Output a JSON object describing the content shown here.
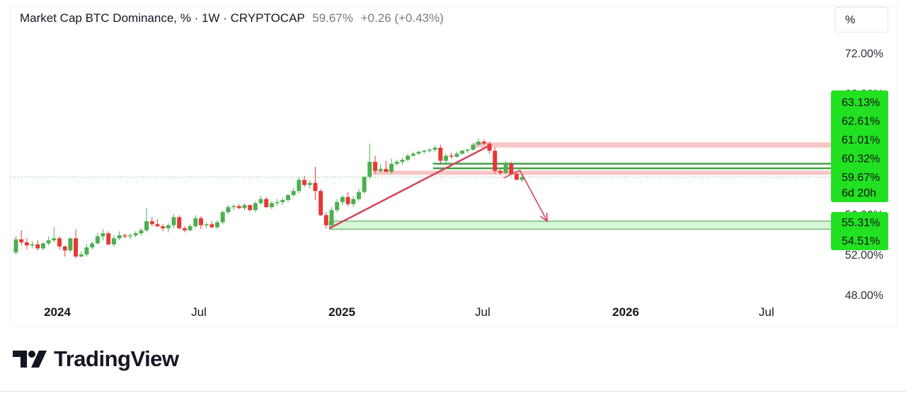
{
  "header": {
    "symbol_title": "Market Cap BTC Dominance, % · 1W · CRYPTOCAP",
    "last_value": "59.67%",
    "change": "+0.26 (+0.43%)"
  },
  "scale_unit": "%",
  "branding": {
    "wordmark": "TradingView",
    "logo_icon": "tradingview-logo-icon"
  },
  "colors": {
    "up": "#4caf50",
    "down": "#e53935",
    "label_bg": "#22e022",
    "zone_red": "#f6b3b3",
    "zone_green": "#c8f3c8",
    "trendline": "#d3455b",
    "hline_green": "#43a047"
  },
  "chart_data": {
    "type": "candlestick",
    "title": "Market Cap BTC Dominance, % · 1W · CRYPTOCAP",
    "interval": "1W",
    "y_unit": "%",
    "ylim": [
      48,
      72
    ],
    "y_ticks": [
      "72.00%",
      "68.00%",
      "56.00%",
      "52.00%",
      "48.00%"
    ],
    "x_ticks": [
      {
        "date": "2024-01-01",
        "label": "2024",
        "bold": true
      },
      {
        "date": "2024-07-01",
        "label": "Jul",
        "bold": false
      },
      {
        "date": "2025-01-01",
        "label": "2025",
        "bold": true
      },
      {
        "date": "2025-07-01",
        "label": "Jul",
        "bold": false
      },
      {
        "date": "2026-01-01",
        "label": "2026",
        "bold": true
      },
      {
        "date": "2026-07-01",
        "label": "Jul",
        "bold": false
      }
    ],
    "x_range": [
      "2023-11-01",
      "2027-01-01"
    ],
    "level_labels": [
      {
        "value": 63.13,
        "text": "63.13%"
      },
      {
        "value": 62.61,
        "text": "62.61%"
      },
      {
        "value": 61.01,
        "text": "61.01%"
      },
      {
        "value": 60.32,
        "text": "60.32%"
      },
      {
        "value": 59.67,
        "text": "59.67%",
        "subtext": "6d 20h"
      },
      {
        "value": 55.31,
        "text": "55.31%"
      },
      {
        "value": 54.51,
        "text": "54.51%"
      }
    ],
    "current_price": 59.67,
    "countdown": "6d 20h",
    "zones": [
      {
        "from": 62.61,
        "to": 63.13,
        "color": "red",
        "start": "2025-06-20"
      },
      {
        "from": 60.32,
        "to": 59.9,
        "color": "red",
        "start": "2025-02-10"
      },
      {
        "from": 54.51,
        "to": 55.31,
        "color": "green",
        "start": "2024-12-16"
      }
    ],
    "hlines": [
      {
        "value": 61.01,
        "start": "2025-04-28"
      },
      {
        "value": 60.55,
        "start": "2025-04-28"
      }
    ],
    "drawings": [
      {
        "kind": "trendline",
        "from": [
          "2024-12-16",
          54.6
        ],
        "to": [
          "2025-07-07",
          62.7
        ]
      },
      {
        "kind": "arrow",
        "points": [
          [
            "2025-07-28",
            59.6
          ],
          [
            "2025-08-18",
            60.35
          ],
          [
            "2025-09-22",
            55.3
          ]
        ]
      }
    ],
    "candles": [
      [
        "2023-11-06",
        52.2,
        53.8,
        52.0,
        53.5
      ],
      [
        "2023-11-13",
        53.5,
        54.4,
        52.9,
        53.2
      ],
      [
        "2023-11-20",
        53.2,
        53.6,
        52.5,
        52.9
      ],
      [
        "2023-11-27",
        52.9,
        53.3,
        52.6,
        53.0
      ],
      [
        "2023-12-04",
        53.0,
        53.4,
        52.4,
        52.6
      ],
      [
        "2023-12-11",
        52.6,
        53.2,
        52.4,
        53.1
      ],
      [
        "2023-12-18",
        53.1,
        53.8,
        52.9,
        53.4
      ],
      [
        "2023-12-25",
        53.4,
        54.7,
        53.2,
        53.6
      ],
      [
        "2024-01-01",
        53.6,
        53.8,
        52.5,
        52.8
      ],
      [
        "2024-01-08",
        52.8,
        52.9,
        51.8,
        52.4
      ],
      [
        "2024-01-15",
        52.4,
        53.7,
        52.2,
        53.6
      ],
      [
        "2024-01-22",
        53.6,
        54.5,
        51.6,
        51.8
      ],
      [
        "2024-01-29",
        51.8,
        52.3,
        51.7,
        52.0
      ],
      [
        "2024-02-05",
        52.0,
        53.0,
        51.8,
        52.7
      ],
      [
        "2024-02-12",
        52.7,
        53.3,
        52.5,
        53.1
      ],
      [
        "2024-02-19",
        53.1,
        54.1,
        53.0,
        53.8
      ],
      [
        "2024-02-26",
        53.8,
        54.5,
        53.4,
        54.1
      ],
      [
        "2024-03-04",
        54.1,
        54.3,
        52.9,
        53.0
      ],
      [
        "2024-03-11",
        53.0,
        53.9,
        52.8,
        53.6
      ],
      [
        "2024-03-18",
        53.6,
        54.3,
        53.4,
        53.9
      ],
      [
        "2024-03-25",
        53.9,
        54.1,
        53.6,
        53.8
      ],
      [
        "2024-04-01",
        53.8,
        54.1,
        53.5,
        53.9
      ],
      [
        "2024-04-08",
        53.9,
        54.3,
        53.7,
        54.1
      ],
      [
        "2024-04-15",
        54.1,
        54.6,
        53.9,
        54.4
      ],
      [
        "2024-04-22",
        54.4,
        56.6,
        54.2,
        55.3
      ],
      [
        "2024-04-29",
        55.3,
        55.7,
        54.8,
        55.0
      ],
      [
        "2024-05-06",
        55.0,
        55.5,
        54.7,
        54.8
      ],
      [
        "2024-05-13",
        54.8,
        55.0,
        54.3,
        54.6
      ],
      [
        "2024-05-20",
        54.6,
        55.1,
        54.2,
        54.9
      ],
      [
        "2024-05-27",
        54.9,
        56.0,
        54.6,
        55.7
      ],
      [
        "2024-06-03",
        55.7,
        55.9,
        54.5,
        54.6
      ],
      [
        "2024-06-10",
        54.6,
        54.8,
        54.2,
        54.4
      ],
      [
        "2024-06-17",
        54.4,
        55.0,
        54.3,
        54.8
      ],
      [
        "2024-06-24",
        54.8,
        55.9,
        54.6,
        55.6
      ],
      [
        "2024-07-01",
        55.6,
        55.8,
        54.5,
        54.9
      ],
      [
        "2024-07-08",
        54.9,
        55.2,
        54.6,
        55.0
      ],
      [
        "2024-07-15",
        55.0,
        55.3,
        54.6,
        54.7
      ],
      [
        "2024-07-22",
        54.7,
        55.4,
        54.5,
        55.2
      ],
      [
        "2024-07-29",
        55.2,
        56.4,
        55.0,
        56.2
      ],
      [
        "2024-08-05",
        56.2,
        56.9,
        56.0,
        56.7
      ],
      [
        "2024-08-12",
        56.7,
        57.0,
        56.4,
        56.8
      ],
      [
        "2024-08-19",
        56.8,
        57.0,
        56.5,
        56.6
      ],
      [
        "2024-08-26",
        56.6,
        57.1,
        56.4,
        56.9
      ],
      [
        "2024-09-02",
        56.9,
        57.0,
        56.3,
        56.4
      ],
      [
        "2024-09-09",
        56.4,
        57.3,
        56.2,
        57.1
      ],
      [
        "2024-09-16",
        57.1,
        57.8,
        56.9,
        57.5
      ],
      [
        "2024-09-23",
        57.5,
        57.7,
        56.6,
        56.7
      ],
      [
        "2024-09-30",
        56.7,
        57.3,
        56.5,
        57.1
      ],
      [
        "2024-10-07",
        57.1,
        57.5,
        56.8,
        57.2
      ],
      [
        "2024-10-14",
        57.2,
        57.6,
        56.9,
        57.4
      ],
      [
        "2024-10-21",
        57.4,
        58.0,
        57.2,
        57.9
      ],
      [
        "2024-10-28",
        57.9,
        58.6,
        57.7,
        58.3
      ],
      [
        "2024-11-04",
        58.3,
        59.7,
        58.1,
        59.4
      ],
      [
        "2024-11-11",
        59.4,
        59.8,
        58.7,
        58.9
      ],
      [
        "2024-11-18",
        58.9,
        59.4,
        58.5,
        59.1
      ],
      [
        "2024-11-25",
        59.1,
        60.7,
        57.4,
        58.3
      ],
      [
        "2024-12-02",
        58.3,
        58.5,
        55.8,
        55.9
      ],
      [
        "2024-12-09",
        55.9,
        56.2,
        54.6,
        54.9
      ],
      [
        "2024-12-16",
        54.9,
        56.7,
        54.5,
        56.4
      ],
      [
        "2024-12-23",
        56.4,
        57.5,
        56.2,
        57.2
      ],
      [
        "2024-12-30",
        57.2,
        57.9,
        56.9,
        57.7
      ],
      [
        "2025-01-06",
        57.7,
        58.2,
        56.8,
        57.0
      ],
      [
        "2025-01-13",
        57.0,
        57.8,
        56.7,
        57.5
      ],
      [
        "2025-01-20",
        57.5,
        58.5,
        57.3,
        58.2
      ],
      [
        "2025-01-27",
        58.2,
        59.8,
        58.0,
        59.7
      ],
      [
        "2025-02-03",
        59.7,
        63.0,
        59.5,
        61.2
      ],
      [
        "2025-02-10",
        61.2,
        61.8,
        60.0,
        60.3
      ],
      [
        "2025-02-17",
        60.3,
        61.0,
        60.1,
        60.5
      ],
      [
        "2025-02-24",
        60.5,
        61.3,
        60.2,
        60.2
      ],
      [
        "2025-03-03",
        60.2,
        61.5,
        60.0,
        61.0
      ],
      [
        "2025-03-10",
        61.0,
        61.4,
        60.8,
        61.2
      ],
      [
        "2025-03-17",
        61.2,
        61.6,
        60.9,
        61.4
      ],
      [
        "2025-03-24",
        61.4,
        62.0,
        61.2,
        61.8
      ],
      [
        "2025-03-31",
        61.8,
        62.2,
        61.7,
        62.0
      ],
      [
        "2025-04-07",
        62.0,
        62.3,
        61.9,
        62.2
      ],
      [
        "2025-04-14",
        62.2,
        62.4,
        62.0,
        62.3
      ],
      [
        "2025-04-21",
        62.3,
        62.6,
        62.1,
        62.4
      ],
      [
        "2025-04-28",
        62.4,
        62.8,
        62.2,
        62.6
      ],
      [
        "2025-05-05",
        62.6,
        62.9,
        61.0,
        61.3
      ],
      [
        "2025-05-12",
        61.3,
        62.0,
        61.1,
        61.8
      ],
      [
        "2025-05-19",
        61.8,
        62.1,
        61.5,
        61.7
      ],
      [
        "2025-05-26",
        61.7,
        62.2,
        61.6,
        62.0
      ],
      [
        "2025-06-02",
        62.0,
        62.4,
        61.9,
        62.3
      ],
      [
        "2025-06-09",
        62.3,
        62.5,
        62.1,
        62.4
      ],
      [
        "2025-06-16",
        62.4,
        63.1,
        62.3,
        62.9
      ],
      [
        "2025-06-23",
        62.9,
        63.5,
        62.8,
        63.2
      ],
      [
        "2025-06-30",
        63.2,
        63.4,
        62.9,
        63.0
      ],
      [
        "2025-07-07",
        63.0,
        63.2,
        62.0,
        62.3
      ],
      [
        "2025-07-14",
        62.3,
        62.6,
        60.0,
        60.3
      ],
      [
        "2025-07-21",
        60.3,
        60.5,
        59.9,
        60.1
      ],
      [
        "2025-07-28",
        60.1,
        61.3,
        60.0,
        61.0
      ],
      [
        "2025-08-04",
        61.0,
        61.2,
        59.9,
        60.0
      ],
      [
        "2025-08-11",
        60.0,
        60.2,
        59.4,
        59.41
      ],
      [
        "2025-08-18",
        59.41,
        59.9,
        59.2,
        59.67
      ]
    ]
  }
}
